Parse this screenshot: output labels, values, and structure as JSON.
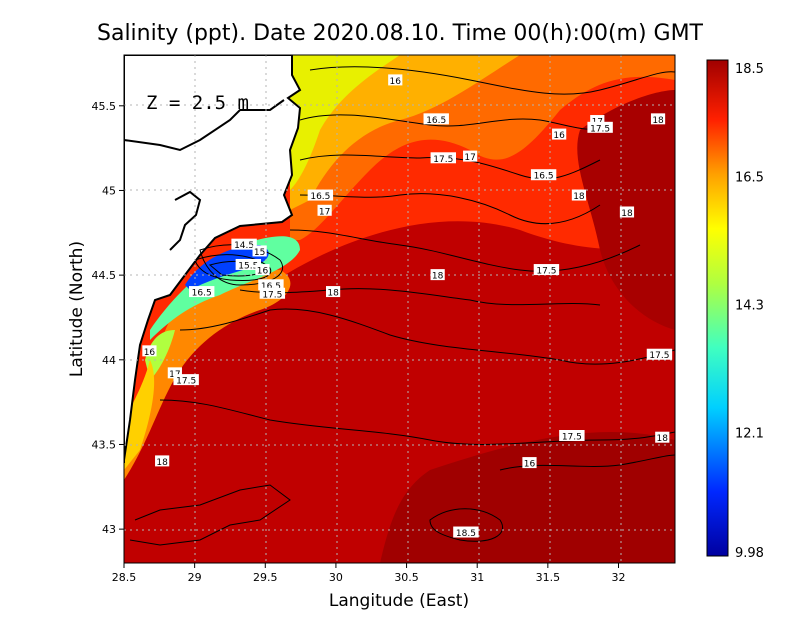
{
  "title": "Salinity (ppt). Date 2020.08.10. Time 00(h):00(m) GMT",
  "depth_label": "Z = 2.5 m",
  "x_axis_label": "Langitude (East)",
  "y_axis_label": "Latitude (North)",
  "colors": {
    "land": "#ffffff",
    "coast": "#000000",
    "background_high": "#b40000",
    "grid": "#b4b4b4"
  },
  "chart_data": {
    "type": "heatmap",
    "variable": "Salinity (ppt)",
    "xlim": [
      28.5,
      32.4
    ],
    "ylim": [
      42.8,
      45.8
    ],
    "x_ticks": [
      "28.5",
      "29",
      "29.5",
      "30",
      "30.5",
      "31",
      "31.5",
      "32"
    ],
    "y_ticks": [
      "43",
      "43.5",
      "44",
      "44.5",
      "45",
      "45.5"
    ],
    "colorbar": {
      "min": 9.98,
      "max": 18.5,
      "tick_labels": [
        "18.5",
        "16.5",
        "14.3",
        "12.1",
        "9.98"
      ],
      "tick_values": [
        18.5,
        16.5,
        14.3,
        12.1,
        9.98
      ]
    },
    "contour_labels": [
      {
        "text": "16",
        "lon": 30.42,
        "lat": 45.65
      },
      {
        "text": "16.5",
        "lon": 30.71,
        "lat": 45.42
      },
      {
        "text": "16",
        "lon": 31.58,
        "lat": 45.33
      },
      {
        "text": "17",
        "lon": 31.85,
        "lat": 45.41
      },
      {
        "text": "17.5",
        "lon": 31.87,
        "lat": 45.37
      },
      {
        "text": "18",
        "lon": 32.28,
        "lat": 45.42
      },
      {
        "text": "17.5",
        "lon": 30.76,
        "lat": 45.19
      },
      {
        "text": "17",
        "lon": 30.95,
        "lat": 45.2
      },
      {
        "text": "16.5",
        "lon": 31.47,
        "lat": 45.09
      },
      {
        "text": "18",
        "lon": 31.72,
        "lat": 44.97
      },
      {
        "text": "18",
        "lon": 32.06,
        "lat": 44.87
      },
      {
        "text": "16.5",
        "lon": 29.89,
        "lat": 44.97
      },
      {
        "text": "17",
        "lon": 29.92,
        "lat": 44.88
      },
      {
        "text": "14.5",
        "lon": 29.35,
        "lat": 44.68
      },
      {
        "text": "15",
        "lon": 29.46,
        "lat": 44.64
      },
      {
        "text": "15.5",
        "lon": 29.38,
        "lat": 44.56
      },
      {
        "text": "16",
        "lon": 29.48,
        "lat": 44.53
      },
      {
        "text": "16.5",
        "lon": 29.54,
        "lat": 44.44
      },
      {
        "text": "17.5",
        "lon": 29.55,
        "lat": 44.39
      },
      {
        "text": "16.5",
        "lon": 29.05,
        "lat": 44.4
      },
      {
        "text": "18",
        "lon": 29.98,
        "lat": 44.4
      },
      {
        "text": "18",
        "lon": 30.72,
        "lat": 44.5
      },
      {
        "text": "17.5",
        "lon": 31.49,
        "lat": 44.53
      },
      {
        "text": "16",
        "lon": 28.68,
        "lat": 44.05
      },
      {
        "text": "17",
        "lon": 28.86,
        "lat": 43.92
      },
      {
        "text": "17.5",
        "lon": 28.94,
        "lat": 43.88
      },
      {
        "text": "17.5",
        "lon": 32.29,
        "lat": 44.03
      },
      {
        "text": "17.5",
        "lon": 31.67,
        "lat": 43.55
      },
      {
        "text": "18",
        "lon": 32.31,
        "lat": 43.54
      },
      {
        "text": "16",
        "lon": 31.37,
        "lat": 43.39
      },
      {
        "text": "18",
        "lon": 28.77,
        "lat": 43.4
      },
      {
        "text": "18.5",
        "lon": 30.92,
        "lat": 42.98
      }
    ]
  }
}
